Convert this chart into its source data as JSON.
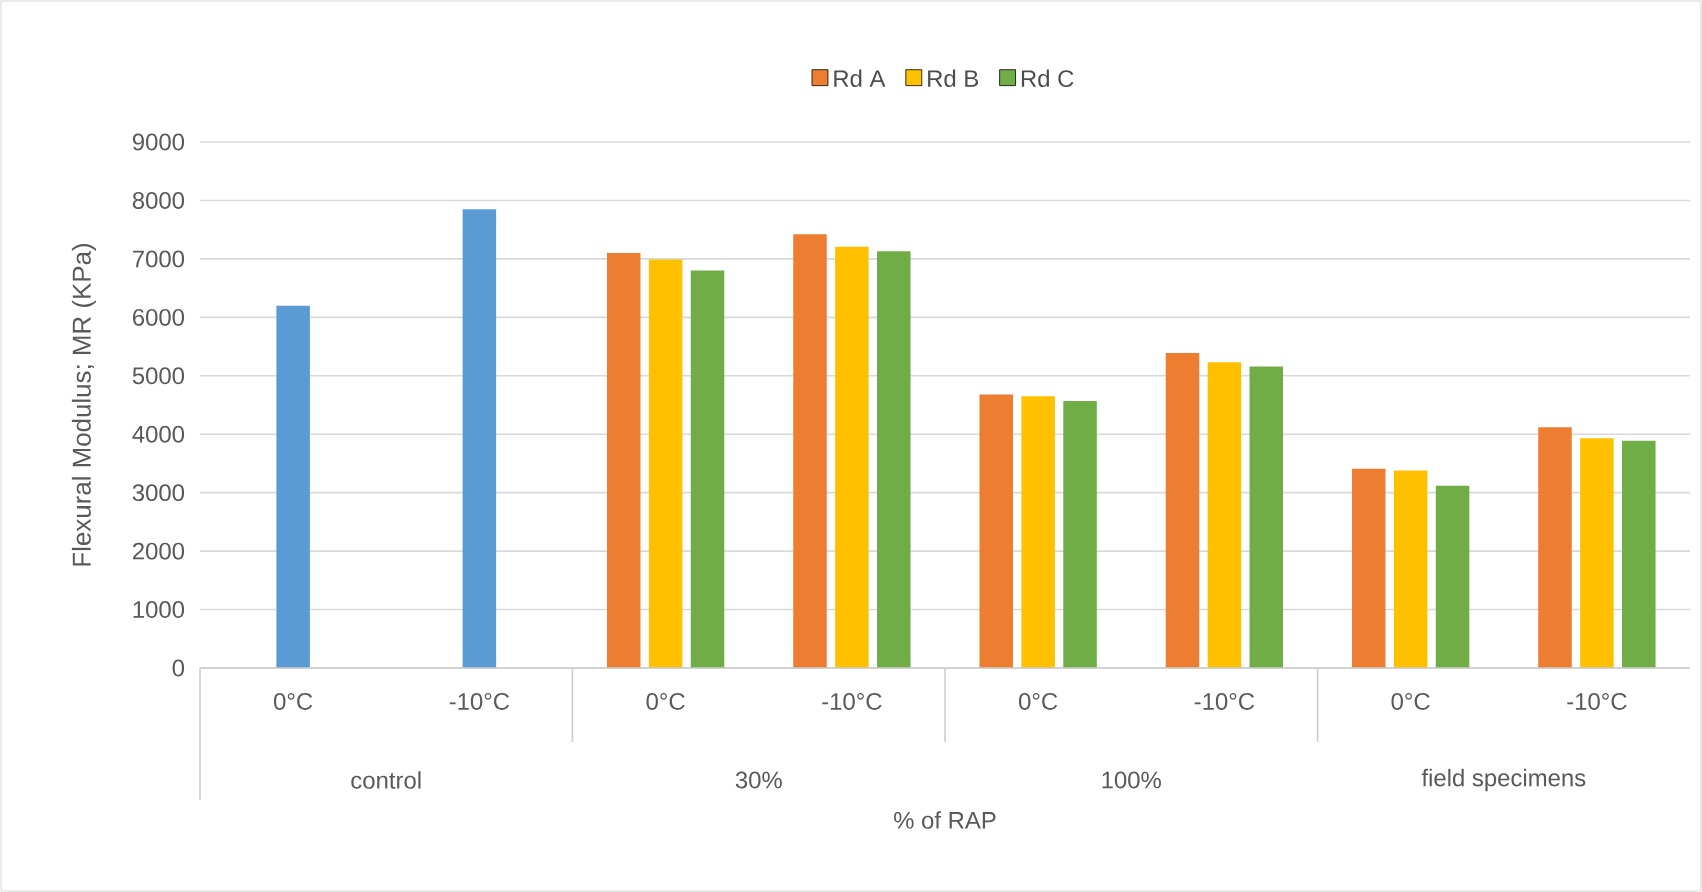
{
  "chart_data": {
    "type": "bar",
    "xlabel": "% of RAP",
    "ylabel": "Flexural Modulus; MR (KPa)",
    "categories": [
      "0°C",
      "-10°C",
      "0°C",
      "-10°C",
      "0°C",
      "-10°C",
      "0°C",
      "-10°C"
    ],
    "annotations": [
      "control",
      "30%",
      "100%",
      "field specimens"
    ],
    "series": [
      {
        "color": "#5b9bd5",
        "values": [
          6200,
          7850,
          null,
          null,
          null,
          null,
          null,
          null
        ]
      },
      {
        "name": "Rd A",
        "color": "#ed7d31",
        "values": [
          null,
          null,
          7100,
          7420,
          4680,
          5390,
          3410,
          4120
        ]
      },
      {
        "name": "Rd B",
        "color": "#ffc000",
        "values": [
          null,
          null,
          6990,
          7210,
          4650,
          5230,
          3380,
          3930
        ]
      },
      {
        "name": "Rd C",
        "color": "#70ad47",
        "values": [
          null,
          null,
          6800,
          7130,
          4570,
          5160,
          3120,
          3890
        ]
      }
    ],
    "ylim": [
      0,
      9000
    ],
    "yticks": [
      0,
      1000,
      2000,
      3000,
      4000,
      5000,
      6000,
      7000,
      8000,
      9000
    ],
    "grid": "y",
    "legend": "top"
  }
}
